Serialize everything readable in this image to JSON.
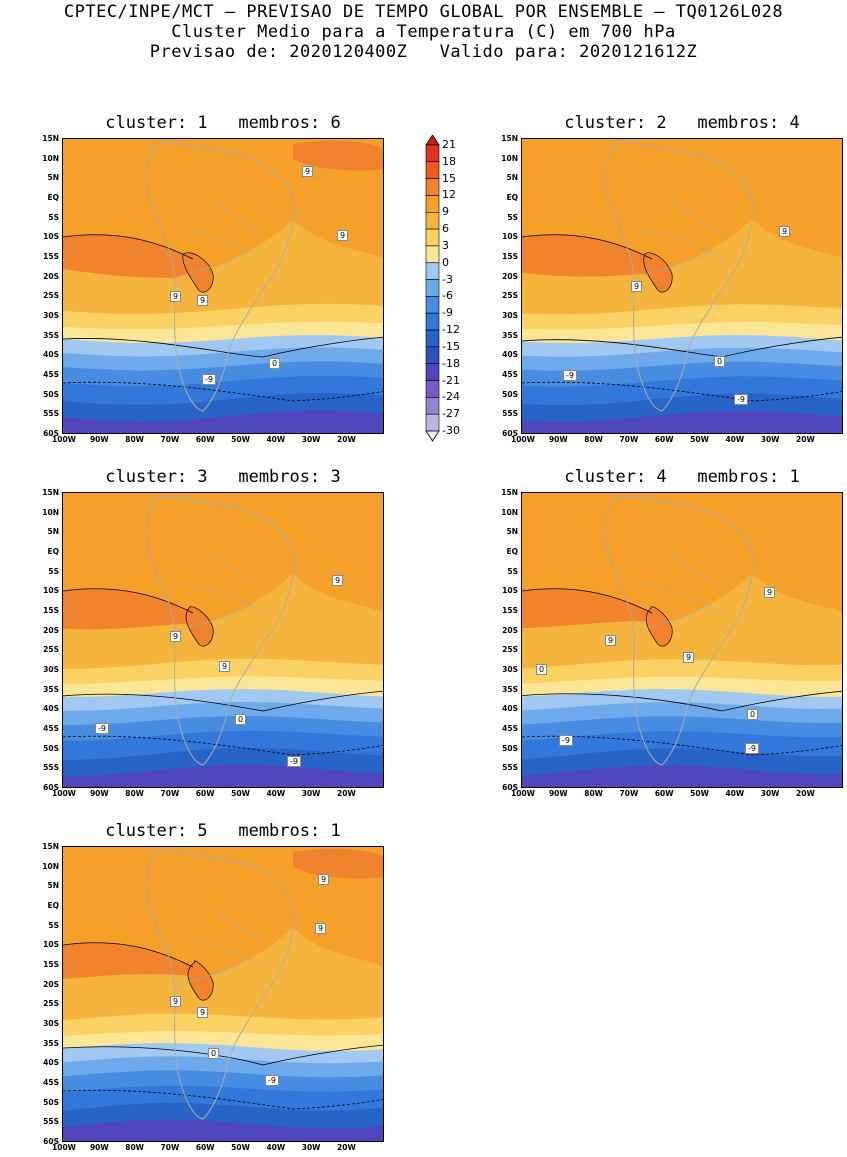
{
  "header": {
    "line1": "CPTEC/INPE/MCT – PREVISAO DE TEMPO GLOBAL POR ENSEMBLE – TQ0126L028",
    "line2": "Cluster Medio para a Temperatura (C) em 700 hPa",
    "line3": "Previsao de: 2020120400Z   Valido para: 2020121612Z"
  },
  "lat_labels": [
    "15N",
    "10N",
    "5N",
    "EQ",
    "5S",
    "10S",
    "15S",
    "20S",
    "25S",
    "30S",
    "35S",
    "40S",
    "45S",
    "50S",
    "55S",
    "60S"
  ],
  "lon_labels": [
    "100W",
    "90W",
    "80W",
    "70W",
    "60W",
    "50W",
    "40W",
    "30W",
    "20W"
  ],
  "panels": [
    {
      "title": "cluster: 1   membros: 6",
      "contour_labels": [
        "9",
        "9",
        "9",
        "9",
        "0",
        "-9"
      ]
    },
    {
      "title": "cluster: 2   membros: 4",
      "contour_labels": [
        "9",
        "9",
        "0",
        "-9",
        "-9"
      ]
    },
    {
      "title": "cluster: 3   membros: 3",
      "contour_labels": [
        "9",
        "9",
        "9",
        "0",
        "-9",
        "-9"
      ]
    },
    {
      "title": "cluster: 4   membros: 1",
      "contour_labels": [
        "9",
        "9",
        "9",
        "0",
        "0",
        "-9",
        "-9"
      ]
    },
    {
      "title": "cluster: 5   membros: 1",
      "contour_labels": [
        "9",
        "9",
        "9",
        "9",
        "0",
        "-9"
      ]
    }
  ],
  "colorbar": {
    "labels": [
      "21",
      "18",
      "15",
      "12",
      "9",
      "6",
      "3",
      "0",
      "-3",
      "-6",
      "-9",
      "-12",
      "-15",
      "-18",
      "-21",
      "-24",
      "-27",
      "-30"
    ],
    "colors": [
      "#c81e14",
      "#e1321e",
      "#f05a1e",
      "#f0822d",
      "#f5a028",
      "#f5b43c",
      "#fad264",
      "#fae696",
      "#a0c8f0",
      "#6eaaeb",
      "#468ce1",
      "#3278dc",
      "#2864c8",
      "#3250be",
      "#5046be",
      "#785ac8",
      "#9682d2",
      "#beb4e6",
      "#e6e6f5"
    ]
  }
}
